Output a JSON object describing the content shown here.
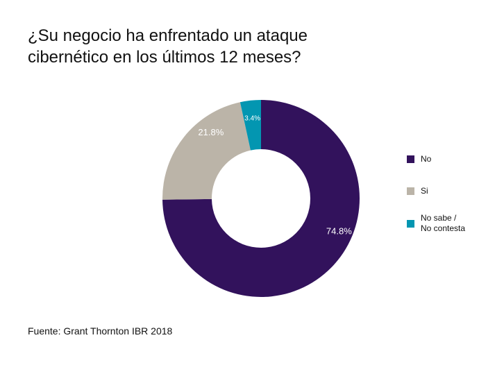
{
  "chart_data": {
    "type": "pie",
    "variant": "donut",
    "title": "¿Su negocio ha enfrentado un ataque cibernético en los últimos 12 meses?",
    "categories": [
      "No",
      "Si",
      "No sabe / No contesta"
    ],
    "values": [
      74.8,
      21.8,
      3.4
    ],
    "data_labels": [
      "74.8%",
      "21.8%",
      "3.4%"
    ],
    "colors": [
      "#32125c",
      "#bbb4a8",
      "#0396b1"
    ],
    "start_angle": "12 o'clock",
    "direction": "clockwise",
    "legend_position": "right",
    "legend": [
      {
        "label_lines": [
          "No"
        ],
        "color": "#32125c"
      },
      {
        "label_lines": [
          "Si"
        ],
        "color": "#bbb4a8"
      },
      {
        "label_lines": [
          "No sabe /",
          "No contesta"
        ],
        "color": "#0396b1"
      }
    ],
    "source": "Fuente: Grant Thornton IBR 2018"
  }
}
